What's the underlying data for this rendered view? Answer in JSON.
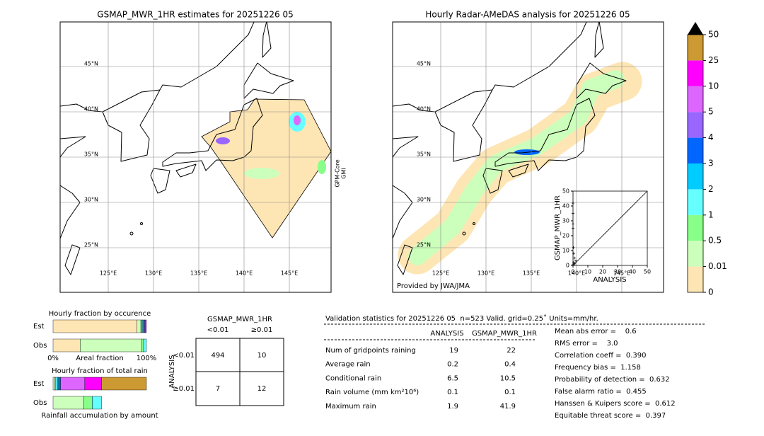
{
  "maps": [
    {
      "title": "GSMAP_MWR_1HR estimates for 20251226 05",
      "lats": [
        {
          "value": 45,
          "label": "45°N"
        },
        {
          "value": 40,
          "label": "40°N"
        },
        {
          "value": 35,
          "label": "35°N"
        },
        {
          "value": 30,
          "label": "30°N"
        },
        {
          "value": 25,
          "label": "25°N"
        }
      ],
      "lons": [
        {
          "value": 125,
          "label": "125°E"
        },
        {
          "value": 130,
          "label": "130°E"
        },
        {
          "value": 135,
          "label": "135°E"
        },
        {
          "value": 140,
          "label": "140°E"
        },
        {
          "value": 145,
          "label": "145°E"
        }
      ],
      "side_label": [
        "GPM-Core",
        "GMI"
      ]
    },
    {
      "title": "Hourly Radar-AMeDAS analysis for 20251226 05",
      "lats": [
        {
          "value": 45,
          "label": "45°N"
        },
        {
          "value": 40,
          "label": "40°N"
        },
        {
          "value": 35,
          "label": "35°N"
        },
        {
          "value": 30,
          "label": "30°N"
        },
        {
          "value": 25,
          "label": "25°N"
        }
      ],
      "lons": [
        {
          "value": 125,
          "label": "125°E"
        },
        {
          "value": 130,
          "label": "130°E"
        },
        {
          "value": 135,
          "label": "135°E"
        },
        {
          "value": 140,
          "label": "140°E"
        },
        {
          "value": 145,
          "label": "145°E"
        }
      ],
      "credit": "Provided by JWA/JMA"
    }
  ],
  "colorbar": {
    "ticks": [
      0,
      0.01,
      0.5,
      1,
      2,
      3,
      4,
      5,
      10,
      25,
      50
    ],
    "colors": [
      "#fee5b4",
      "#ccffbb",
      "#88ff88",
      "#66ffff",
      "#00ccff",
      "#0066ff",
      "#9966ff",
      "#dd66ff",
      "#ff00ff",
      "#cc9933"
    ],
    "extend_color": "#000000"
  },
  "scatter": {
    "ylabel": "GSMAP_MWR_1HR",
    "xlabel": "ANALYSIS",
    "xlim": [
      0,
      50
    ],
    "ylim": [
      0,
      50
    ],
    "xticks": [
      0,
      10,
      20,
      30,
      40,
      50
    ],
    "yticks": [
      0,
      10,
      20,
      30,
      40,
      50
    ],
    "x": [
      0,
      0,
      0,
      0,
      0.3,
      0.5,
      1,
      1.9,
      0.5,
      1,
      0
    ],
    "y": [
      41.9,
      35,
      28,
      25,
      12,
      8,
      5,
      3,
      2,
      1,
      0.5
    ]
  },
  "occurrence": {
    "title": "Hourly fraction by occurence",
    "xlabel": "Areal fraction",
    "xticks": [
      {
        "value": 0,
        "label": "0%"
      },
      {
        "value": 100,
        "label": "100%"
      }
    ],
    "rows": [
      {
        "label": "Est",
        "values": [
          90,
          4,
          1,
          1,
          1,
          1,
          1,
          1,
          0,
          0
        ]
      },
      {
        "label": "Obs",
        "values": [
          29,
          66,
          2,
          3,
          0,
          0,
          0,
          0,
          0,
          0
        ]
      }
    ]
  },
  "total_rain": {
    "title": "Hourly fraction of total rain",
    "footer": "Rainfall accumulation by amount",
    "rows": [
      {
        "label": "Est",
        "values": [
          0,
          2,
          1,
          2,
          1,
          2,
          0,
          26,
          18,
          48
        ]
      },
      {
        "label": "Obs",
        "values": [
          0,
          33,
          9,
          10,
          0,
          0,
          0,
          0,
          0,
          0
        ]
      }
    ]
  },
  "contingency": {
    "title": "GSMAP_MWR_1HR",
    "row_title": "ANALYSIS",
    "columns": [
      "<0.01",
      "≥0.01"
    ],
    "rows": [
      "<0.01",
      "≥0.01"
    ],
    "cells": [
      [
        "494",
        "10"
      ],
      [
        "7",
        "12"
      ]
    ]
  },
  "stats": {
    "header": "Validation statistics for 20251226 05  n=523 Valid. grid=0.25˚ Units=mm/hr.",
    "columns": [
      "ANALYSIS",
      "GSMAP_MWR_1HR"
    ],
    "rows": [
      [
        "Num of gridpoints raining",
        "19",
        "22"
      ],
      [
        "Average rain",
        "0.2",
        "0.4"
      ],
      [
        "Conditional rain",
        "6.5",
        "10.5"
      ],
      [
        "Rain volume (mm km²10⁶)",
        "0.1",
        "0.1"
      ],
      [
        "Maximum rain",
        "1.9",
        "41.9"
      ]
    ],
    "scores": [
      "Mean abs error =    0.6",
      "RMS error =    3.0",
      "Correlation coeff =  0.390",
      "Frequency bias =  1.158",
      "Probability of detection =  0.632",
      "False alarm ratio =  0.455",
      "Hanssen & Kuipers score =  0.612",
      "Equitable threat score =  0.397"
    ]
  }
}
